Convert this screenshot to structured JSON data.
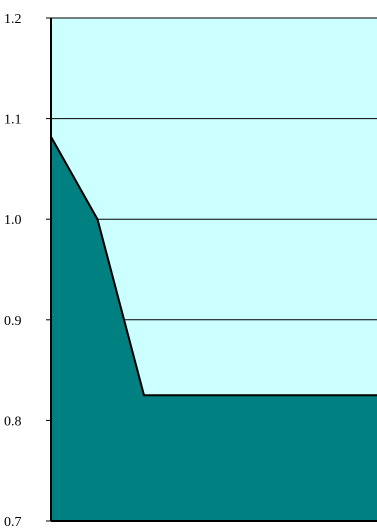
{
  "chart_data": {
    "type": "area",
    "title": "",
    "xlabel": "",
    "ylabel": "",
    "ylim": [
      0.7,
      1.2
    ],
    "yticks": [
      {
        "value": 0.7,
        "label": "0.7"
      },
      {
        "value": 0.8,
        "label": "0.8"
      },
      {
        "value": 0.9,
        "label": "0.9"
      },
      {
        "value": 1.0,
        "label": "1.0"
      },
      {
        "value": 1.1,
        "label": "1.1"
      },
      {
        "value": 1.2,
        "label": "1.2"
      }
    ],
    "grid": true,
    "legend": "none",
    "x": [
      0,
      1,
      2,
      3,
      4,
      5,
      6,
      7
    ],
    "values": [
      1.082,
      1.0,
      0.825,
      0.825,
      0.825,
      0.825,
      0.825,
      0.825
    ],
    "colors": {
      "plot_background": "#ccffff",
      "area_fill": "#008080",
      "area_outline": "#000000",
      "gridline": "#000000",
      "axis": "#000000"
    }
  }
}
